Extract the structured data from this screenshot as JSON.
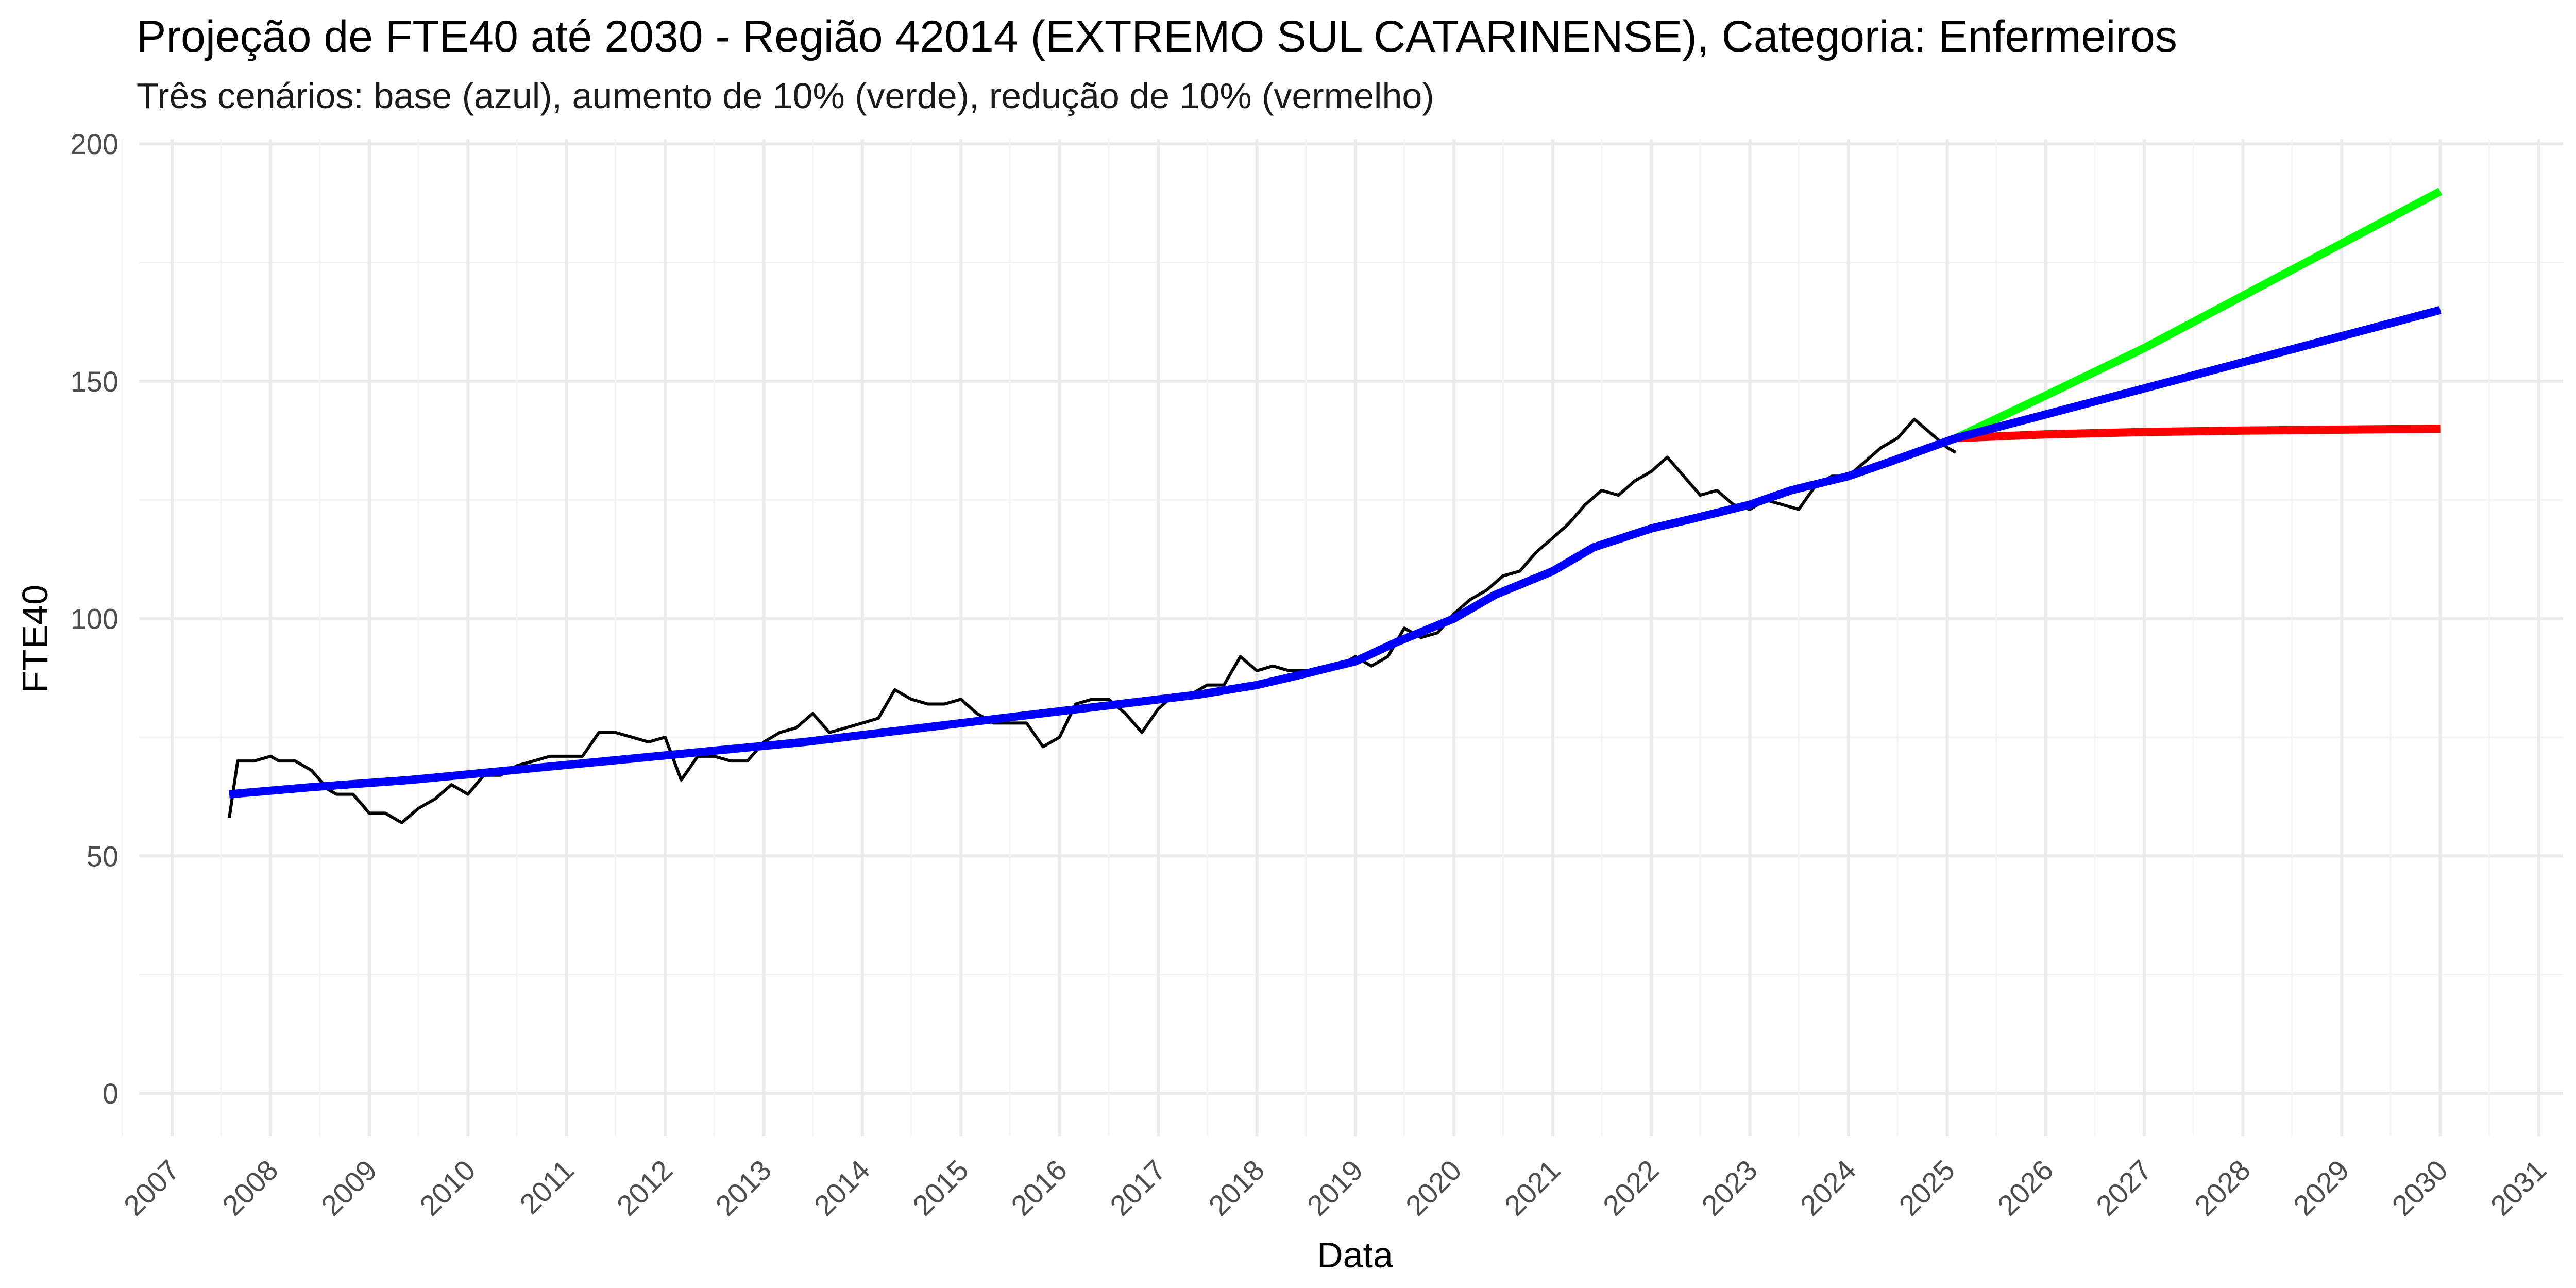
{
  "chart_data": {
    "type": "line",
    "title": "Projeção de FTE40 até 2030 - Região 42014 (EXTREMO SUL CATARINENSE), Categoria: Enfermeiros",
    "subtitle": "Três cenários: base (azul), aumento de 10% (verde), redução de 10% (vermelho)",
    "xlabel": "Data",
    "ylabel": "FTE40",
    "xlim": [
      "2006-09-01",
      "2031-04-01"
    ],
    "ylim": [
      -9,
      201
    ],
    "y_ticks": [
      0,
      50,
      100,
      150,
      200
    ],
    "x_tick_labels": [
      "2007",
      "2008",
      "2009",
      "2010",
      "2011",
      "2012",
      "2013",
      "2014",
      "2015",
      "2016",
      "2017",
      "2018",
      "2019",
      "2020",
      "2021",
      "2022",
      "2023",
      "2024",
      "2025",
      "2026",
      "2027",
      "2028",
      "2029",
      "2030",
      "2031"
    ],
    "grid": true,
    "legend": "none",
    "series": [
      {
        "color": "#000000",
        "x": [
          "2007-08-01",
          "2007-09-01",
          "2007-11-01",
          "2008-01-01",
          "2008-02-01",
          "2008-04-01",
          "2008-06-01",
          "2008-08-01",
          "2008-09-01",
          "2008-11-01",
          "2009-01-01",
          "2009-03-01",
          "2009-05-01",
          "2009-07-01",
          "2009-09-01",
          "2009-11-01",
          "2010-01-01",
          "2010-03-01",
          "2010-05-01",
          "2010-07-01",
          "2010-09-01",
          "2010-11-01",
          "2011-01-01",
          "2011-03-01",
          "2011-05-01",
          "2011-07-01",
          "2011-09-01",
          "2011-11-01",
          "2012-01-01",
          "2012-03-01",
          "2012-05-01",
          "2012-07-01",
          "2012-09-01",
          "2012-11-01",
          "2013-01-01",
          "2013-03-01",
          "2013-05-01",
          "2013-07-01",
          "2013-09-01",
          "2013-11-01",
          "2014-01-01",
          "2014-03-01",
          "2014-05-01",
          "2014-07-01",
          "2014-09-01",
          "2014-11-01",
          "2015-01-01",
          "2015-03-01",
          "2015-05-01",
          "2015-07-01",
          "2015-09-01",
          "2015-11-01",
          "2016-01-01",
          "2016-03-01",
          "2016-05-01",
          "2016-07-01",
          "2016-09-01",
          "2016-11-01",
          "2017-01-01",
          "2017-03-01",
          "2017-05-01",
          "2017-07-01",
          "2017-09-01",
          "2017-11-01",
          "2018-01-01",
          "2018-03-01",
          "2018-05-01",
          "2018-07-01",
          "2018-09-01",
          "2018-11-01",
          "2019-01-01",
          "2019-03-01",
          "2019-05-01",
          "2019-07-01",
          "2019-09-01",
          "2019-11-01",
          "2020-01-01",
          "2020-03-01",
          "2020-05-01",
          "2020-07-01",
          "2020-09-01",
          "2020-11-01",
          "2021-01-01",
          "2021-03-01",
          "2021-05-01",
          "2021-07-01",
          "2021-09-01",
          "2021-11-01",
          "2022-01-01",
          "2022-03-01",
          "2022-05-01",
          "2022-07-01",
          "2022-09-01",
          "2022-11-01",
          "2023-01-01",
          "2023-03-01",
          "2023-05-01",
          "2023-07-01",
          "2023-09-01",
          "2023-11-01",
          "2024-01-01",
          "2024-03-01",
          "2024-05-01",
          "2024-07-01",
          "2024-09-01",
          "2024-11-01",
          "2025-01-01",
          "2025-02-01"
        ],
        "values": [
          58,
          70,
          70,
          71,
          70,
          70,
          68,
          64,
          63,
          63,
          59,
          59,
          57,
          60,
          62,
          65,
          63,
          67,
          67,
          69,
          70,
          71,
          71,
          71,
          76,
          76,
          75,
          74,
          75,
          66,
          71,
          71,
          70,
          70,
          74,
          76,
          77,
          80,
          76,
          77,
          78,
          79,
          85,
          83,
          82,
          82,
          83,
          80,
          78,
          78,
          78,
          73,
          75,
          82,
          83,
          83,
          80,
          76,
          81,
          84,
          84,
          86,
          86,
          92,
          89,
          90,
          89,
          89,
          89,
          90,
          92,
          90,
          92,
          98,
          96,
          97,
          101,
          104,
          106,
          109,
          110,
          114,
          117,
          120,
          124,
          127,
          126,
          129,
          131,
          134,
          130,
          126,
          127,
          124,
          123,
          125,
          124,
          123,
          128,
          130,
          130,
          133,
          136,
          138,
          142,
          139,
          136,
          135
        ]
      },
      {
        "color": "#0000ff",
        "x": [
          "2007-08-01",
          "2008-06-01",
          "2009-06-01",
          "2010-06-01",
          "2011-06-01",
          "2012-06-01",
          "2013-06-01",
          "2014-06-01",
          "2015-06-01",
          "2016-06-01",
          "2017-06-01",
          "2018-01-01",
          "2018-06-01",
          "2019-01-01",
          "2019-06-01",
          "2020-01-01",
          "2020-06-01",
          "2021-01-01",
          "2021-06-01",
          "2022-01-01",
          "2022-06-01",
          "2023-01-01",
          "2023-06-01",
          "2024-01-01",
          "2024-06-01",
          "2025-02-01",
          "2026-01-01",
          "2027-01-01",
          "2028-01-01",
          "2029-01-01",
          "2030-01-01"
        ],
        "values": [
          63,
          64.5,
          66,
          68,
          70,
          72,
          74,
          76.5,
          79,
          81.5,
          84,
          86,
          88,
          91,
          95,
          100,
          105,
          110,
          115,
          119,
          121,
          124,
          127,
          130,
          133,
          138,
          143,
          148.5,
          154,
          159.5,
          165
        ]
      },
      {
        "color": "#00ff00",
        "x": [
          "2025-02-01",
          "2026-01-01",
          "2027-01-01",
          "2028-01-01",
          "2029-01-01",
          "2030-01-01"
        ],
        "values": [
          138,
          147,
          157,
          168,
          179,
          190
        ]
      },
      {
        "color": "#ff0000",
        "x": [
          "2025-02-01",
          "2026-01-01",
          "2027-01-01",
          "2028-01-01",
          "2029-01-01",
          "2030-01-01"
        ],
        "values": [
          138,
          138.8,
          139.3,
          139.6,
          139.8,
          140
        ]
      }
    ]
  }
}
